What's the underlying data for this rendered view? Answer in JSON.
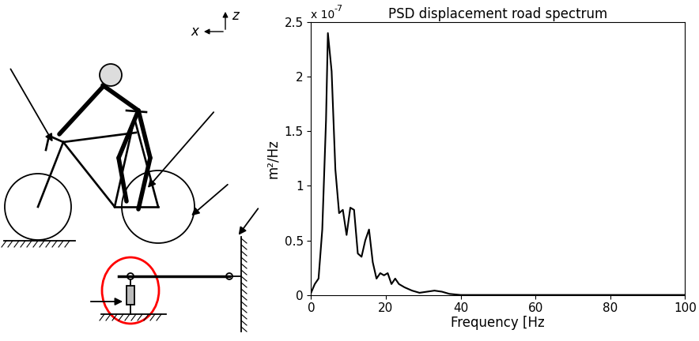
{
  "chart_data": {
    "type": "line",
    "title": "PSD displacement road spectrum",
    "x_label": "Frequency [Hz",
    "y_label": "m²/Hz",
    "y_offset_text": "x 10",
    "y_offset_exponent": "-7",
    "x": [
      0,
      1,
      2,
      3,
      4,
      4.5,
      5.5,
      6.5,
      7.5,
      8.5,
      9.5,
      10.5,
      11.5,
      12.5,
      13.5,
      14.5,
      15.5,
      16.5,
      17.5,
      18.5,
      19.5,
      20.5,
      21.5,
      22.5,
      23.5,
      25,
      27,
      29,
      31,
      33,
      35,
      37,
      40,
      50,
      60,
      70,
      80,
      90,
      100
    ],
    "values": [
      2e-09,
      1e-08,
      1.5e-08,
      6e-08,
      1.6e-07,
      2.4e-07,
      2.05e-07,
      1.15e-07,
      7.5e-08,
      7.8e-08,
      5.5e-08,
      8e-08,
      7.8e-08,
      3.8e-08,
      3.5e-08,
      5e-08,
      6e-08,
      3e-08,
      1.5e-08,
      2e-08,
      1.8e-08,
      2e-08,
      1e-08,
      1.5e-08,
      1e-08,
      7e-09,
      4e-09,
      2e-09,
      3e-09,
      4e-09,
      3e-09,
      1e-09,
      0,
      0,
      0,
      0,
      0,
      0,
      0
    ],
    "color": "#000000",
    "xlim": [
      0,
      100
    ],
    "xticks": [
      0,
      20,
      40,
      60,
      80,
      100
    ],
    "ylim": [
      0,
      2.5e-07
    ],
    "yticks": [
      {
        "value": 0,
        "label": "0"
      },
      {
        "value": 5e-08,
        "label": "0.5"
      },
      {
        "value": 1e-07,
        "label": "1"
      },
      {
        "value": 1.5e-07,
        "label": "1.5"
      },
      {
        "value": 2e-07,
        "label": "2"
      },
      {
        "value": 2.5e-07,
        "label": "2.5"
      }
    ],
    "grid": false
  },
  "diagram": {
    "axis_labels": [
      "x",
      "z"
    ]
  }
}
